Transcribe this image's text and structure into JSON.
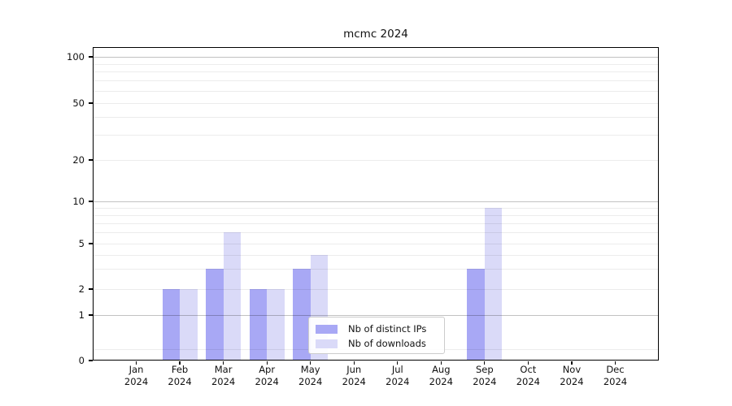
{
  "chart_data": {
    "type": "bar",
    "title": "mcmc 2024",
    "categories": [
      "Jan 2024",
      "Feb 2024",
      "Mar 2024",
      "Apr 2024",
      "May 2024",
      "Jun 2024",
      "Jul 2024",
      "Aug 2024",
      "Sep 2024",
      "Oct 2024",
      "Nov 2024",
      "Dec 2024"
    ],
    "series": [
      {
        "name": "Nb of distinct IPs",
        "color": "#a8a8f5",
        "values": [
          0,
          2,
          3,
          2,
          3,
          0,
          0,
          0,
          3,
          0,
          0,
          0
        ]
      },
      {
        "name": "Nb of downloads",
        "color": "#dadaf8",
        "values": [
          0,
          2,
          6,
          2,
          4,
          0,
          0,
          0,
          9,
          0,
          0,
          0
        ]
      }
    ],
    "xlabel": "",
    "ylabel": "",
    "yscale": "log-like with 0 baseline",
    "yticks": [
      0,
      1,
      2,
      5,
      10,
      20,
      50,
      100
    ],
    "ylim": [
      0,
      110
    ],
    "grid": "on",
    "legend_position": "lower center"
  },
  "colors": {
    "grid_major": "#c2c2c2",
    "grid_minor": "#ececec",
    "spine": "#000000",
    "legend_border": "#cccccc",
    "background": "#ffffff"
  }
}
